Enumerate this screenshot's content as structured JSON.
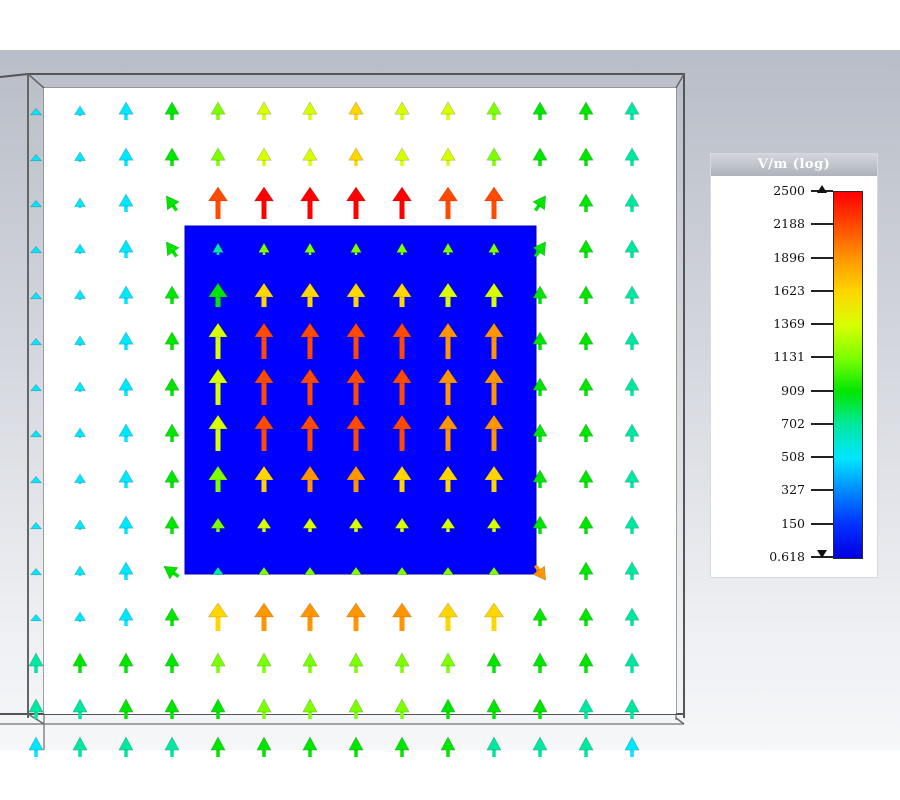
{
  "colorbar": {
    "title": "V/m (log)",
    "ticks": [
      "2500",
      "2188",
      "1896",
      "1623",
      "1369",
      "1131",
      "909",
      "702",
      "508",
      "327",
      "150",
      "0.618"
    ],
    "gradient_colors": [
      "#ff0000",
      "#ff4a00",
      "#ff9600",
      "#ffd600",
      "#d8ff00",
      "#7cff00",
      "#00e600",
      "#00e8a0",
      "#00e6ff",
      "#0088ff",
      "#0030ff",
      "#0000e0"
    ]
  },
  "scene": {
    "patch_color": "#0000ff",
    "arrow_direction": "up"
  }
}
